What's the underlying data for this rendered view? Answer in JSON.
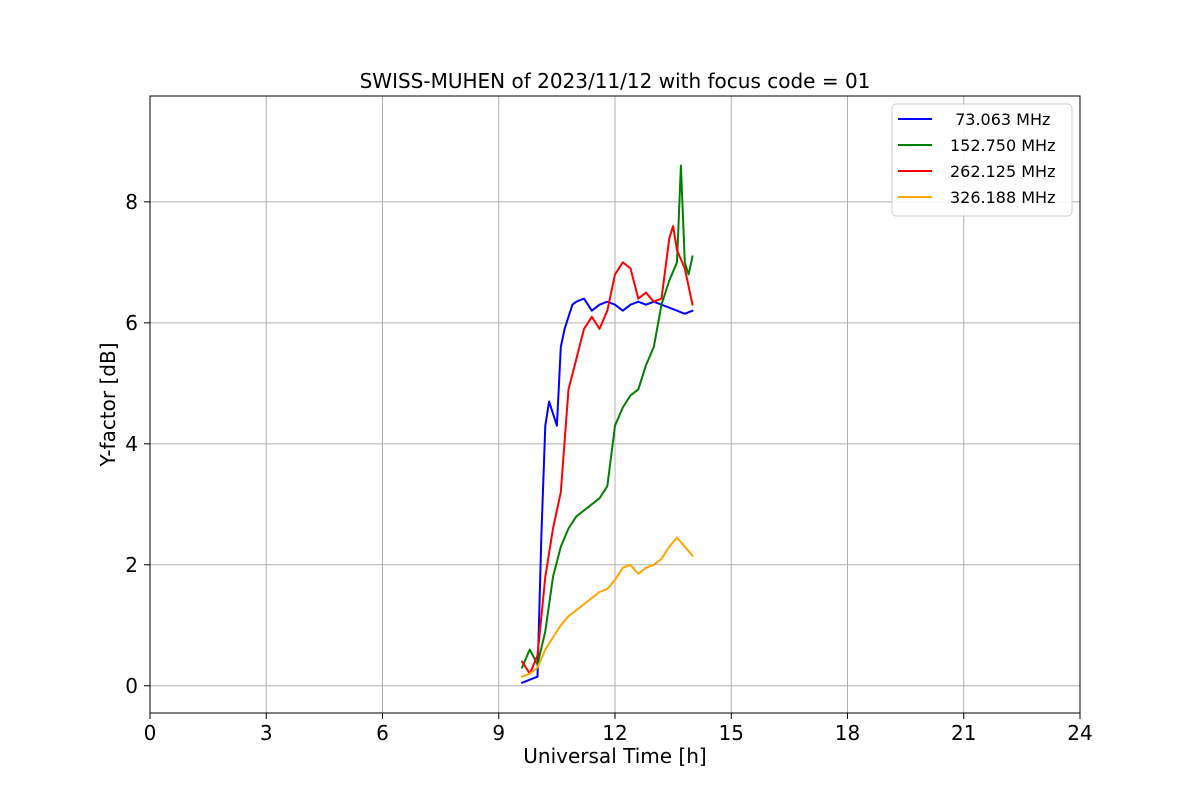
{
  "chart_data": {
    "type": "line",
    "title": "SWISS-MUHEN of 2023/11/12 with focus code = 01",
    "xlabel": "Universal Time [h]",
    "ylabel": "Y-factor [dB]",
    "xlim": [
      0,
      24
    ],
    "ylim": [
      -0.45,
      9.75
    ],
    "xticks": [
      0,
      3,
      6,
      9,
      12,
      15,
      18,
      21,
      24
    ],
    "yticks": [
      0,
      2,
      4,
      6,
      8
    ],
    "grid": true,
    "legend_position": "top-right",
    "series": [
      {
        "name": " 73.063 MHz",
        "color": "#0000ff",
        "x": [
          9.6,
          9.8,
          10.0,
          10.1,
          10.2,
          10.3,
          10.4,
          10.5,
          10.6,
          10.7,
          10.8,
          10.9,
          11.0,
          11.2,
          11.4,
          11.6,
          11.8,
          12.0,
          12.2,
          12.4,
          12.6,
          12.8,
          13.0,
          13.2,
          13.4,
          13.6,
          13.8,
          14.0
        ],
        "y": [
          0.05,
          0.1,
          0.15,
          2.5,
          4.3,
          4.7,
          4.5,
          4.3,
          5.6,
          5.9,
          6.1,
          6.3,
          6.35,
          6.4,
          6.2,
          6.3,
          6.35,
          6.3,
          6.2,
          6.3,
          6.35,
          6.3,
          6.35,
          6.3,
          6.25,
          6.2,
          6.15,
          6.2
        ]
      },
      {
        "name": "152.750 MHz",
        "color": "#008000",
        "x": [
          9.6,
          9.8,
          10.0,
          10.2,
          10.4,
          10.6,
          10.8,
          11.0,
          11.2,
          11.4,
          11.6,
          11.8,
          12.0,
          12.2,
          12.4,
          12.6,
          12.8,
          13.0,
          13.2,
          13.4,
          13.6,
          13.7,
          13.8,
          13.9,
          14.0
        ],
        "y": [
          0.3,
          0.6,
          0.35,
          0.9,
          1.8,
          2.3,
          2.6,
          2.8,
          2.9,
          3.0,
          3.1,
          3.3,
          4.3,
          4.6,
          4.8,
          4.9,
          5.3,
          5.6,
          6.3,
          6.7,
          7.0,
          8.6,
          7.0,
          6.8,
          7.1
        ]
      },
      {
        "name": "262.125 MHz",
        "color": "#ff0000",
        "x": [
          9.6,
          9.8,
          10.0,
          10.2,
          10.4,
          10.6,
          10.8,
          11.0,
          11.2,
          11.4,
          11.6,
          11.8,
          12.0,
          12.2,
          12.4,
          12.6,
          12.8,
          13.0,
          13.2,
          13.4,
          13.5,
          13.6,
          13.8,
          14.0
        ],
        "y": [
          0.4,
          0.2,
          0.5,
          1.8,
          2.6,
          3.2,
          4.9,
          5.4,
          5.9,
          6.1,
          5.9,
          6.2,
          6.8,
          7.0,
          6.9,
          6.4,
          6.5,
          6.35,
          6.4,
          7.4,
          7.6,
          7.2,
          6.9,
          6.3
        ]
      },
      {
        "name": "326.188 MHz",
        "color": "#ffa500",
        "x": [
          9.6,
          9.8,
          10.0,
          10.2,
          10.4,
          10.6,
          10.8,
          11.0,
          11.2,
          11.4,
          11.6,
          11.8,
          12.0,
          12.2,
          12.4,
          12.6,
          12.8,
          13.0,
          13.2,
          13.4,
          13.6,
          13.8,
          14.0
        ],
        "y": [
          0.15,
          0.2,
          0.3,
          0.6,
          0.8,
          1.0,
          1.15,
          1.25,
          1.35,
          1.45,
          1.55,
          1.6,
          1.75,
          1.95,
          2.0,
          1.85,
          1.95,
          2.0,
          2.1,
          2.3,
          2.45,
          2.3,
          2.15
        ]
      }
    ]
  }
}
